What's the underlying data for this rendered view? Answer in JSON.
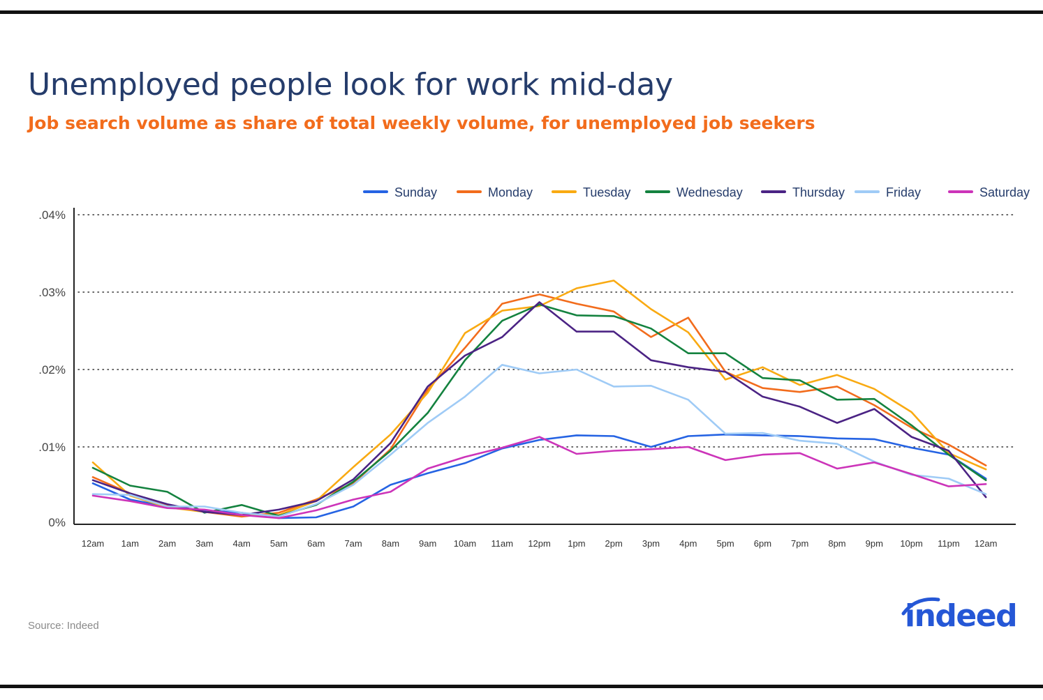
{
  "header": {
    "title": "Unemployed people look for work mid-day",
    "subtitle": "Job search volume as share of total weekly volume, for unemployed job seekers"
  },
  "footer": {
    "source": "Source: Indeed",
    "logo_text": "indeed"
  },
  "colors": {
    "title": "#253c6b",
    "subtitle": "#f26c1c",
    "logo": "#2557d6"
  },
  "chart_data": {
    "type": "line",
    "title": "Unemployed people look for work mid-day",
    "subtitle": "Job search volume as share of total weekly volume, for unemployed job seekers",
    "xlabel": "",
    "ylabel": "",
    "x": [
      "12am",
      "1am",
      "2am",
      "3am",
      "4am",
      "5am",
      "6am",
      "7am",
      "8am",
      "9am",
      "10am",
      "11am",
      "12pm",
      "1pm",
      "2pm",
      "3pm",
      "4pm",
      "5pm",
      "6pm",
      "7pm",
      "8pm",
      "9pm",
      "10pm",
      "11pm",
      "12am"
    ],
    "ylim": [
      0,
      0.04
    ],
    "y_ticks": [
      0,
      0.01,
      0.02,
      0.03,
      0.04
    ],
    "y_tick_labels": [
      "0%",
      ".01%",
      ".02%",
      ".03%",
      ".04%"
    ],
    "grid": "horizontal dotted",
    "legend_position": "top-right",
    "series": [
      {
        "name": "Sunday",
        "color": "#2563e3",
        "values": [
          0.0053,
          0.0032,
          0.0023,
          0.0018,
          0.0015,
          0.0008,
          0.0009,
          0.0023,
          0.0051,
          0.0066,
          0.0079,
          0.0098,
          0.0109,
          0.0115,
          0.0114,
          0.01,
          0.0114,
          0.0116,
          0.0115,
          0.0114,
          0.0111,
          0.011,
          0.0099,
          0.009,
          0.0059
        ]
      },
      {
        "name": "Monday",
        "color": "#f26c1c",
        "values": [
          0.0061,
          0.004,
          0.0025,
          0.0016,
          0.001,
          0.0015,
          0.0032,
          0.0053,
          0.0097,
          0.0174,
          0.0228,
          0.0285,
          0.0297,
          0.0285,
          0.0275,
          0.0242,
          0.0267,
          0.0197,
          0.0176,
          0.0171,
          0.0178,
          0.0154,
          0.0125,
          0.0103,
          0.0076
        ]
      },
      {
        "name": "Tuesday",
        "color": "#f9aa12",
        "values": [
          0.008,
          0.0037,
          0.0022,
          0.0016,
          0.0012,
          0.0012,
          0.003,
          0.0074,
          0.0116,
          0.017,
          0.0247,
          0.0276,
          0.0282,
          0.0305,
          0.0315,
          0.0278,
          0.0248,
          0.0187,
          0.0203,
          0.018,
          0.0193,
          0.0175,
          0.0145,
          0.0092,
          0.0071
        ]
      },
      {
        "name": "Wednesday",
        "color": "#14823f",
        "values": [
          0.0073,
          0.005,
          0.0042,
          0.0015,
          0.0025,
          0.0011,
          0.0025,
          0.0055,
          0.0095,
          0.0144,
          0.0212,
          0.0263,
          0.0284,
          0.027,
          0.0269,
          0.0253,
          0.0221,
          0.0221,
          0.0189,
          0.0186,
          0.0161,
          0.0162,
          0.0128,
          0.009,
          0.0057
        ]
      },
      {
        "name": "Thursday",
        "color": "#4b2384",
        "values": [
          0.0057,
          0.004,
          0.0026,
          0.0016,
          0.0012,
          0.0019,
          0.003,
          0.0058,
          0.0105,
          0.0178,
          0.0218,
          0.0242,
          0.0287,
          0.0249,
          0.0249,
          0.0212,
          0.0203,
          0.0197,
          0.0165,
          0.0152,
          0.0131,
          0.0149,
          0.0113,
          0.0095,
          0.0035
        ]
      },
      {
        "name": "Friday",
        "color": "#9fcbf6",
        "values": [
          0.0039,
          0.0038,
          0.0023,
          0.0023,
          0.0015,
          0.001,
          0.0026,
          0.0051,
          0.009,
          0.0131,
          0.0165,
          0.0206,
          0.0195,
          0.02,
          0.0178,
          0.0179,
          0.0161,
          0.0117,
          0.0118,
          0.0108,
          0.0104,
          0.0081,
          0.0064,
          0.0059,
          0.0039
        ]
      },
      {
        "name": "Saturday",
        "color": "#cc34b9",
        "values": [
          0.0037,
          0.003,
          0.0021,
          0.0019,
          0.0012,
          0.0008,
          0.0018,
          0.0032,
          0.0042,
          0.0072,
          0.0087,
          0.0099,
          0.0113,
          0.0091,
          0.0095,
          0.0097,
          0.01,
          0.0083,
          0.009,
          0.0092,
          0.0072,
          0.008,
          0.0065,
          0.0049,
          0.0052
        ]
      }
    ]
  }
}
